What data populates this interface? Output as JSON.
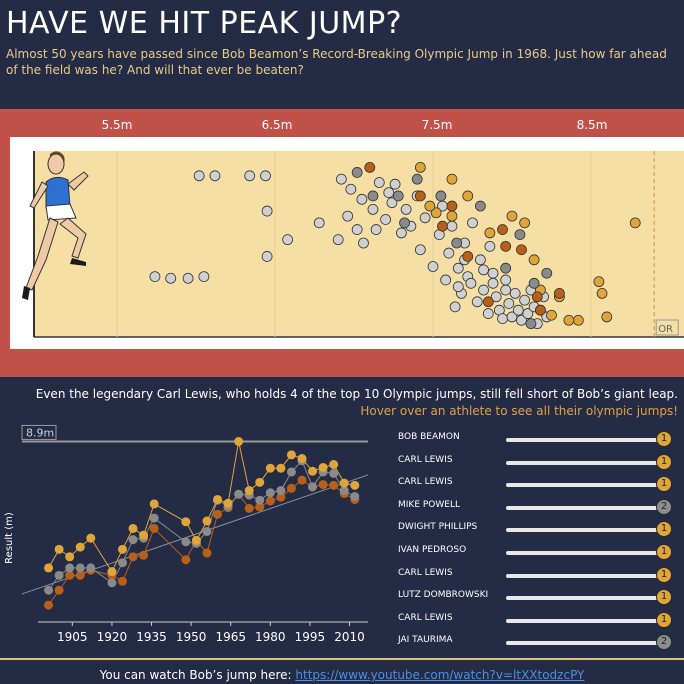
{
  "header": {
    "title": "HAVE WE HIT PEAK JUMP?",
    "subtitle": "Almost 50 years have passed since Bob Beamon’s Record-Breaking Olympic Jump in 1968. Just how far ahead of the field was he? And will that ever be beaten?"
  },
  "colors": {
    "background": "#242b45",
    "band": "#c0524a",
    "sand": "#f5dfa5",
    "gold": "#e0a53a",
    "silver": "#8a8a8a",
    "bronze": "#b8601a",
    "other": "#d0d0d0",
    "accent_text": "#e0a246"
  },
  "chart_data": [
    {
      "type": "scatter",
      "xlim": [
        5.0,
        9.0
      ],
      "ylim": [
        0,
        1
      ],
      "x_ticks": [
        "5.5m",
        "6.5m",
        "7.5m",
        "8.5m"
      ],
      "x_tick_values": [
        5.5,
        6.5,
        7.5,
        8.5
      ],
      "reference_line": {
        "x": 8.9,
        "label": "OR"
      },
      "series": [
        {
          "name": "other",
          "points": [
            [
              5.74,
              0.3
            ],
            [
              5.84,
              0.29
            ],
            [
              5.95,
              0.29
            ],
            [
              6.05,
              0.3
            ],
            [
              6.02,
              0.9
            ],
            [
              6.12,
              0.9
            ],
            [
              6.34,
              0.9
            ],
            [
              6.44,
              0.9
            ],
            [
              6.45,
              0.42
            ],
            [
              6.45,
              0.69
            ],
            [
              6.58,
              0.52
            ],
            [
              6.78,
              0.62
            ],
            [
              6.9,
              0.52
            ],
            [
              6.96,
              0.66
            ],
            [
              6.92,
              0.88
            ],
            [
              6.98,
              0.82
            ],
            [
              7.05,
              0.76
            ],
            [
              7.02,
              0.58
            ],
            [
              7.06,
              0.5
            ],
            [
              7.12,
              0.7
            ],
            [
              7.14,
              0.58
            ],
            [
              7.16,
              0.86
            ],
            [
              7.2,
              0.64
            ],
            [
              7.24,
              0.74
            ],
            [
              7.22,
              0.8
            ],
            [
              7.3,
              0.56
            ],
            [
              7.26,
              0.85
            ],
            [
              7.33,
              0.7
            ],
            [
              7.36,
              0.6
            ],
            [
              7.4,
              0.78
            ],
            [
              7.42,
              0.46
            ],
            [
              7.45,
              0.65
            ],
            [
              7.5,
              0.36
            ],
            [
              7.54,
              0.55
            ],
            [
              7.56,
              0.72
            ],
            [
              7.58,
              0.28
            ],
            [
              7.6,
              0.44
            ],
            [
              7.62,
              0.6
            ],
            [
              7.64,
              0.12
            ],
            [
              7.66,
              0.35
            ],
            [
              7.68,
              0.2
            ],
            [
              7.7,
              0.5
            ],
            [
              7.72,
              0.3
            ],
            [
              7.75,
              0.62
            ],
            [
              7.78,
              0.15
            ],
            [
              7.8,
              0.4
            ],
            [
              7.82,
              0.22
            ],
            [
              7.85,
              0.08
            ],
            [
              7.86,
              0.48
            ],
            [
              7.88,
              0.32
            ],
            [
              7.9,
              0.18
            ],
            [
              7.92,
              0.1
            ],
            [
              7.94,
              0.05
            ],
            [
              7.96,
              0.28
            ],
            [
              7.98,
              0.14
            ],
            [
              8.0,
              0.06
            ],
            [
              8.02,
              0.2
            ],
            [
              8.04,
              0.1
            ],
            [
              8.06,
              0.04
            ],
            [
              8.08,
              0.16
            ],
            [
              8.1,
              0.08
            ],
            [
              8.12,
              0.22
            ],
            [
              8.14,
              0.12
            ],
            [
              8.16,
              0.02
            ],
            [
              8.18,
              0.1
            ],
            [
              8.2,
              0.18
            ],
            [
              8.22,
              0.06
            ],
            [
              7.7,
              0.4
            ],
            [
              7.74,
              0.26
            ],
            [
              7.82,
              0.34
            ],
            [
              7.66,
              0.24
            ],
            [
              7.88,
              0.26
            ],
            [
              7.96,
              0.22
            ]
          ]
        },
        {
          "name": "gold",
          "points": [
            [
              8.78,
              0.62
            ],
            [
              8.6,
              0.06
            ],
            [
              8.57,
              0.2
            ],
            [
              8.55,
              0.27
            ],
            [
              8.42,
              0.04
            ],
            [
              8.36,
              0.04
            ],
            [
              8.3,
              0.18
            ],
            [
              8.25,
              0.07
            ],
            [
              8.18,
              0.22
            ],
            [
              8.14,
              0.4
            ],
            [
              8.08,
              0.62
            ],
            [
              8.0,
              0.66
            ],
            [
              7.86,
              0.56
            ],
            [
              7.72,
              0.78
            ],
            [
              7.62,
              0.88
            ],
            [
              7.52,
              0.68
            ],
            [
              7.42,
              0.95
            ],
            [
              7.62,
              0.66
            ],
            [
              7.48,
              0.72
            ]
          ]
        },
        {
          "name": "silver",
          "points": [
            [
              8.22,
              0.32
            ],
            [
              8.12,
              0.02
            ],
            [
              8.05,
              0.55
            ],
            [
              7.96,
              0.35
            ],
            [
              7.8,
              0.72
            ],
            [
              7.65,
              0.5
            ],
            [
              7.55,
              0.78
            ],
            [
              7.4,
              0.88
            ],
            [
              7.32,
              0.62
            ],
            [
              7.12,
              0.78
            ],
            [
              7.02,
              0.92
            ],
            [
              7.28,
              0.78
            ],
            [
              8.14,
              0.26
            ]
          ]
        },
        {
          "name": "bronze",
          "points": [
            [
              8.3,
              0.2
            ],
            [
              8.16,
              0.18
            ],
            [
              8.06,
              0.46
            ],
            [
              7.96,
              0.48
            ],
            [
              7.85,
              0.15
            ],
            [
              7.72,
              0.42
            ],
            [
              7.62,
              0.72
            ],
            [
              7.56,
              0.6
            ],
            [
              7.42,
              0.78
            ],
            [
              7.1,
              0.95
            ],
            [
              8.18,
              0.1
            ],
            [
              7.94,
              0.58
            ]
          ]
        }
      ]
    },
    {
      "type": "line",
      "xlabel": "",
      "ylabel": "Result (m)",
      "ylim": [
        6.5,
        9.0
      ],
      "x_ticks": [
        1905,
        1920,
        1935,
        1950,
        1965,
        1980,
        1995,
        2010
      ],
      "reference_line": {
        "y": 8.9,
        "label": "8.9m"
      },
      "x": [
        1896,
        1900,
        1904,
        1908,
        1912,
        1920,
        1924,
        1928,
        1932,
        1936,
        1948,
        1952,
        1956,
        1960,
        1964,
        1968,
        1972,
        1976,
        1980,
        1984,
        1988,
        1992,
        1996,
        2000,
        2004,
        2008,
        2012
      ],
      "series": [
        {
          "name": "gold",
          "values": [
            7.2,
            7.45,
            7.35,
            7.48,
            7.6,
            7.15,
            7.45,
            7.73,
            7.64,
            8.06,
            7.82,
            7.57,
            7.83,
            8.12,
            8.07,
            8.9,
            8.24,
            8.35,
            8.54,
            8.54,
            8.72,
            8.67,
            8.5,
            8.55,
            8.59,
            8.34,
            8.31
          ]
        },
        {
          "name": "silver",
          "values": [
            6.9,
            7.1,
            7.2,
            7.2,
            7.2,
            7.0,
            7.27,
            7.58,
            7.6,
            7.87,
            7.55,
            7.53,
            7.69,
            8.11,
            8.03,
            8.19,
            8.18,
            8.11,
            8.21,
            8.24,
            8.49,
            8.64,
            8.29,
            8.49,
            8.47,
            8.24,
            8.16
          ]
        },
        {
          "name": "bronze",
          "values": [
            6.7,
            6.9,
            7.1,
            7.1,
            7.17,
            7.1,
            7.02,
            7.35,
            7.37,
            7.73,
            7.31,
            7.57,
            7.4,
            7.92,
            8.01,
            8.19,
            8.0,
            8.02,
            8.1,
            8.15,
            8.27,
            8.38,
            8.29,
            8.32,
            8.31,
            8.2,
            8.12
          ]
        }
      ]
    }
  ],
  "captions": {
    "main": "Even the legendary Carl Lewis, who holds 4 of the top 10 Olympic jumps, still fell short of Bob’s giant leap.",
    "hint": "Hover over an athlete to see all their olympic jumps!"
  },
  "rankings": [
    {
      "name": "BOB BEAMON",
      "medal": "1"
    },
    {
      "name": "CARL LEWIS",
      "medal": "1"
    },
    {
      "name": "CARL LEWIS",
      "medal": "1"
    },
    {
      "name": "MIKE POWELL",
      "medal": "2"
    },
    {
      "name": "DWIGHT PHILLIPS",
      "medal": "1"
    },
    {
      "name": "IVAN PEDROSO",
      "medal": "1"
    },
    {
      "name": "CARL LEWIS",
      "medal": "1"
    },
    {
      "name": "LUTZ DOMBROWSKI",
      "medal": "1"
    },
    {
      "name": "CARL LEWIS",
      "medal": "1"
    },
    {
      "name": "JAI TAURIMA",
      "medal": "2"
    }
  ],
  "footer": {
    "text": "You can watch Bob’s jump here: ",
    "link": "https://www.youtube.com/watch?v=ltXXtodzcPY"
  }
}
